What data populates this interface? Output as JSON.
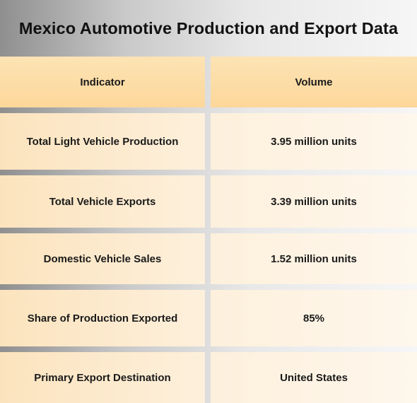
{
  "title": "Mexico Automotive Production and Export Data",
  "table": {
    "headers": [
      "Indicator",
      "Volume"
    ],
    "rows": [
      {
        "indicator": "Total Light Vehicle Production",
        "volume": "3.95 million units"
      },
      {
        "indicator": "Total Vehicle Exports",
        "volume": "3.39 million units"
      },
      {
        "indicator": "Domestic Vehicle Sales",
        "volume": "1.52 million units"
      },
      {
        "indicator": "Share of Production Exported",
        "volume": "85%"
      },
      {
        "indicator": "Primary Export Destination",
        "volume": "United States"
      }
    ]
  },
  "colors": {
    "header_fill": "#fcd79a",
    "row_fill_left": "#fdebd0",
    "row_fill_right": "#fef4e6",
    "title_text": "#111111"
  }
}
